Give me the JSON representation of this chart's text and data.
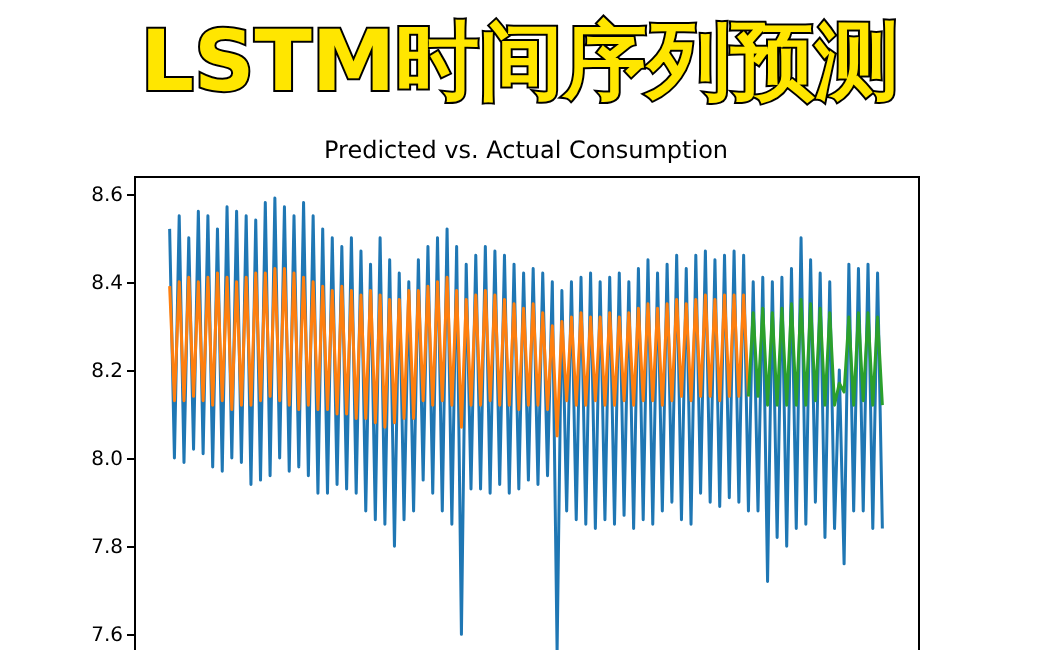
{
  "chart_data": {
    "type": "line",
    "title": "LSTM时间序列预测",
    "subtitle": "Predicted vs. Actual Consumption",
    "categories": [
      null,
      null,
      null,
      null,
      null,
      null,
      null,
      null,
      null,
      null,
      null,
      null,
      null,
      null,
      null,
      null,
      null,
      null,
      null,
      null,
      null,
      null,
      null,
      null,
      null,
      null,
      null,
      null,
      null,
      null,
      null,
      null,
      null,
      null,
      null,
      null,
      null,
      null,
      null,
      null,
      null,
      null,
      null,
      null,
      null,
      null,
      null,
      null,
      null,
      null,
      null,
      null,
      null,
      null,
      null,
      null,
      null,
      null,
      null,
      null,
      null,
      null,
      null,
      null,
      null,
      null,
      null,
      null,
      null,
      null,
      null,
      null,
      null,
      null,
      null,
      null,
      null,
      null,
      null,
      null,
      null,
      null,
      null,
      null,
      null,
      null,
      null,
      null,
      null,
      null,
      null,
      null,
      null,
      null,
      null,
      null,
      null,
      null,
      null,
      null,
      null,
      null,
      null,
      null,
      null,
      null,
      null,
      null,
      null,
      null,
      null,
      null,
      null,
      null,
      null,
      null,
      null,
      null,
      null,
      null,
      null,
      null,
      null,
      null,
      null,
      null,
      null,
      null,
      null,
      null,
      null,
      null,
      null,
      null,
      null,
      null,
      null,
      null,
      null,
      null,
      null,
      null,
      null,
      null,
      null,
      null,
      null,
      null,
      null,
      null
    ],
    "series": [
      {
        "color": "#1f77b4",
        "values": [
          8.52,
          8.0,
          8.55,
          7.99,
          8.5,
          8.02,
          8.56,
          8.01,
          8.55,
          7.98,
          8.52,
          7.97,
          8.57,
          8.0,
          8.56,
          7.99,
          8.55,
          7.94,
          8.54,
          7.95,
          8.58,
          7.96,
          8.59,
          8.0,
          8.57,
          7.97,
          8.55,
          7.98,
          8.58,
          7.96,
          8.55,
          7.92,
          8.52,
          7.92,
          8.5,
          7.94,
          8.48,
          7.93,
          8.5,
          7.92,
          8.47,
          7.88,
          8.44,
          7.86,
          8.5,
          7.85,
          8.45,
          7.8,
          8.42,
          7.86,
          8.4,
          7.88,
          8.45,
          7.95,
          8.48,
          7.92,
          8.5,
          7.88,
          8.52,
          7.85,
          8.48,
          7.6,
          8.44,
          7.93,
          8.46,
          7.93,
          8.48,
          7.92,
          8.47,
          7.94,
          8.46,
          7.92,
          8.44,
          7.93,
          8.42,
          7.95,
          8.43,
          7.94,
          8.42,
          7.96,
          8.4,
          7.56,
          8.38,
          7.88,
          8.4,
          7.86,
          8.41,
          7.85,
          8.42,
          7.84,
          8.4,
          7.86,
          8.41,
          7.85,
          8.42,
          7.87,
          8.4,
          7.84,
          8.43,
          7.86,
          8.45,
          7.85,
          8.42,
          7.88,
          8.44,
          7.9,
          8.46,
          7.86,
          8.43,
          7.85,
          8.46,
          7.92,
          8.47,
          7.9,
          8.45,
          7.89,
          8.46,
          7.91,
          8.47,
          7.9,
          8.46,
          7.88,
          8.4,
          7.88,
          8.41,
          7.72,
          8.4,
          7.82,
          8.41,
          7.8,
          8.43,
          7.84,
          8.5,
          7.85,
          8.45,
          7.9,
          8.42,
          7.82,
          8.4,
          7.84,
          8.2,
          7.76,
          8.44,
          7.88,
          8.43,
          7.88,
          8.44,
          7.84,
          8.42,
          7.84
        ]
      },
      {
        "color": "#ff7f0e",
        "values": [
          8.39,
          8.13,
          8.4,
          8.13,
          8.41,
          8.14,
          8.4,
          8.13,
          8.41,
          8.12,
          8.42,
          8.13,
          8.41,
          8.11,
          8.4,
          8.12,
          8.41,
          8.12,
          8.42,
          8.13,
          8.42,
          8.14,
          8.43,
          8.13,
          8.43,
          8.12,
          8.42,
          8.11,
          8.41,
          8.12,
          8.4,
          8.11,
          8.39,
          8.11,
          8.38,
          8.1,
          8.39,
          8.1,
          8.38,
          8.09,
          8.37,
          8.09,
          8.38,
          8.08,
          8.37,
          8.07,
          8.36,
          8.08,
          8.36,
          8.09,
          8.38,
          8.09,
          8.38,
          8.13,
          8.39,
          8.12,
          8.4,
          8.13,
          8.41,
          8.12,
          8.38,
          8.07,
          8.36,
          8.12,
          8.37,
          8.12,
          8.38,
          8.13,
          8.37,
          8.12,
          8.36,
          8.12,
          8.35,
          8.11,
          8.34,
          8.12,
          8.35,
          8.12,
          8.33,
          8.11,
          8.3,
          8.05,
          8.31,
          8.13,
          8.32,
          8.12,
          8.33,
          8.12,
          8.32,
          8.13,
          8.32,
          8.12,
          8.33,
          8.12,
          8.32,
          8.13,
          8.33,
          8.12,
          8.34,
          8.13,
          8.35,
          8.13,
          8.34,
          8.12,
          8.35,
          8.13,
          8.36,
          8.14,
          8.35,
          8.13,
          8.36,
          8.14,
          8.37,
          8.14,
          8.36,
          8.13,
          8.37,
          8.14,
          8.37,
          8.14,
          8.37,
          8.14,
          null,
          null,
          null,
          null,
          null,
          null,
          null,
          null,
          null,
          null,
          null,
          null,
          null,
          null,
          null,
          null,
          null,
          null,
          null,
          null,
          null,
          null,
          null,
          null,
          null,
          null,
          null,
          null
        ]
      },
      {
        "color": "#2ca02c",
        "values": [
          null,
          null,
          null,
          null,
          null,
          null,
          null,
          null,
          null,
          null,
          null,
          null,
          null,
          null,
          null,
          null,
          null,
          null,
          null,
          null,
          null,
          null,
          null,
          null,
          null,
          null,
          null,
          null,
          null,
          null,
          null,
          null,
          null,
          null,
          null,
          null,
          null,
          null,
          null,
          null,
          null,
          null,
          null,
          null,
          null,
          null,
          null,
          null,
          null,
          null,
          null,
          null,
          null,
          null,
          null,
          null,
          null,
          null,
          null,
          null,
          null,
          null,
          null,
          null,
          null,
          null,
          null,
          null,
          null,
          null,
          null,
          null,
          null,
          null,
          null,
          null,
          null,
          null,
          null,
          null,
          null,
          null,
          null,
          null,
          null,
          null,
          null,
          null,
          null,
          null,
          null,
          null,
          null,
          null,
          null,
          null,
          null,
          null,
          null,
          null,
          null,
          null,
          null,
          null,
          null,
          null,
          null,
          null,
          null,
          null,
          null,
          null,
          null,
          null,
          null,
          null,
          null,
          null,
          null,
          null,
          null,
          8.14,
          8.33,
          8.14,
          8.34,
          8.12,
          8.33,
          8.12,
          8.34,
          8.12,
          8.35,
          8.12,
          8.36,
          8.12,
          8.35,
          8.13,
          8.34,
          8.12,
          8.33,
          8.12,
          8.17,
          8.15,
          8.32,
          8.12,
          8.33,
          8.13,
          8.33,
          8.12,
          8.32,
          8.12
        ]
      }
    ],
    "ylim": [
      7.56,
      8.64
    ],
    "yticks": [
      7.6,
      7.8,
      {
        "value": 8,
        "label": "8.0"
      },
      8.2,
      8.4,
      8.6
    ],
    "tick_labels": "y",
    "grid": false,
    "legend": false
  }
}
